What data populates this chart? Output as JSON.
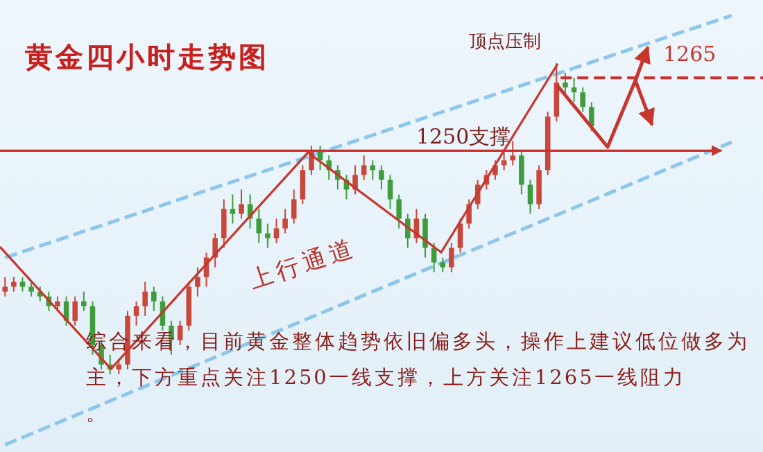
{
  "chart_data": {
    "type": "candlestick",
    "title": "黄金四小时走势图",
    "categories": [
      null,
      null,
      null,
      null,
      null,
      null,
      null,
      null,
      null,
      null,
      null,
      null,
      null,
      null,
      null,
      null,
      null,
      null,
      null,
      null,
      null,
      null,
      null,
      null,
      null,
      null,
      null,
      null,
      null,
      null,
      null,
      null,
      null,
      null,
      null,
      null,
      null,
      null,
      null,
      null,
      null,
      null,
      null,
      null,
      null,
      null,
      null,
      null,
      null,
      null,
      null,
      null,
      null,
      null,
      null,
      null,
      null,
      null,
      null,
      null,
      null,
      null,
      null,
      null,
      null,
      null,
      null,
      null,
      null,
      null,
      null,
      null,
      null,
      null,
      null,
      null,
      null,
      null,
      null,
      null,
      null,
      null,
      null,
      null
    ],
    "ohlc": [
      [
        1221,
        1224,
        1220,
        1222
      ],
      [
        1222,
        1224,
        1221,
        1223
      ],
      [
        1223,
        1224,
        1221,
        1222
      ],
      [
        1222,
        1223,
        1220,
        1221
      ],
      [
        1221,
        1222,
        1219,
        1220
      ],
      [
        1220,
        1221,
        1217,
        1218
      ],
      [
        1218,
        1220,
        1217,
        1219
      ],
      [
        1219,
        1220,
        1214,
        1215
      ],
      [
        1215,
        1220,
        1214,
        1219
      ],
      [
        1219,
        1221,
        1217,
        1218
      ],
      [
        1218,
        1219,
        1208,
        1210
      ],
      [
        1210,
        1211,
        1205,
        1206
      ],
      [
        1206,
        1208,
        1204,
        1205
      ],
      [
        1205,
        1207,
        1204,
        1206
      ],
      [
        1206,
        1217,
        1205,
        1216
      ],
      [
        1216,
        1219,
        1214,
        1218
      ],
      [
        1218,
        1223,
        1216,
        1221
      ],
      [
        1221,
        1222,
        1217,
        1219
      ],
      [
        1219,
        1220,
        1213,
        1214
      ],
      [
        1214,
        1215,
        1208,
        1211
      ],
      [
        1211,
        1215,
        1210,
        1214
      ],
      [
        1214,
        1223,
        1213,
        1222
      ],
      [
        1222,
        1226,
        1220,
        1224
      ],
      [
        1224,
        1229,
        1222,
        1228
      ],
      [
        1228,
        1233,
        1226,
        1232
      ],
      [
        1232,
        1240,
        1230,
        1238
      ],
      [
        1238,
        1241,
        1235,
        1237
      ],
      [
        1237,
        1242,
        1236,
        1239
      ],
      [
        1239,
        1241,
        1234,
        1236
      ],
      [
        1236,
        1238,
        1231,
        1233
      ],
      [
        1233,
        1235,
        1230,
        1232
      ],
      [
        1232,
        1236,
        1231,
        1234
      ],
      [
        1234,
        1238,
        1233,
        1236
      ],
      [
        1236,
        1242,
        1235,
        1240
      ],
      [
        1240,
        1247,
        1239,
        1246
      ],
      [
        1246,
        1251,
        1245,
        1250
      ],
      [
        1250,
        1251,
        1246,
        1248
      ],
      [
        1248,
        1249,
        1244,
        1246
      ],
      [
        1246,
        1247,
        1242,
        1244
      ],
      [
        1244,
        1245,
        1240,
        1242
      ],
      [
        1242,
        1247,
        1241,
        1245
      ],
      [
        1245,
        1249,
        1244,
        1247
      ],
      [
        1247,
        1248,
        1244,
        1246
      ],
      [
        1246,
        1247,
        1242,
        1244
      ],
      [
        1244,
        1245,
        1238,
        1240
      ],
      [
        1240,
        1241,
        1234,
        1236
      ],
      [
        1236,
        1237,
        1230,
        1232
      ],
      [
        1232,
        1238,
        1231,
        1236
      ],
      [
        1236,
        1237,
        1228,
        1230
      ],
      [
        1230,
        1231,
        1225,
        1227
      ],
      [
        1227,
        1228,
        1225,
        1226
      ],
      [
        1226,
        1231,
        1225,
        1230
      ],
      [
        1230,
        1236,
        1229,
        1235
      ],
      [
        1235,
        1240,
        1234,
        1239
      ],
      [
        1239,
        1244,
        1238,
        1243
      ],
      [
        1243,
        1246,
        1242,
        1245
      ],
      [
        1245,
        1248,
        1244,
        1247
      ],
      [
        1247,
        1250,
        1246,
        1248
      ],
      [
        1248,
        1252,
        1247,
        1249
      ],
      [
        1249,
        1250,
        1241,
        1243
      ],
      [
        1243,
        1244,
        1237,
        1239
      ],
      [
        1239,
        1247,
        1238,
        1246
      ],
      [
        1246,
        1258,
        1245,
        1257
      ],
      [
        1257,
        1268,
        1256,
        1264
      ],
      [
        1264,
        1266,
        1261,
        1263
      ],
      [
        1263,
        1265,
        1260,
        1262
      ],
      [
        1262,
        1263,
        1258,
        1259
      ],
      [
        1259,
        1260,
        1254,
        1255
      ],
      null,
      null,
      null,
      null,
      null,
      null,
      null,
      null,
      null,
      null,
      null,
      null,
      null,
      null,
      null,
      null
    ],
    "series": [
      {
        "type": "line",
        "values": [
          1228,
          1228.6,
          1229.2,
          1229.8,
          1230.4,
          1231,
          1231.6,
          1232.2,
          1232.8,
          1233.4,
          1234,
          1234.6,
          1235.2,
          1235.8,
          1236.4,
          1237,
          1237.6,
          1238.2,
          1238.8,
          1239.4,
          1240,
          1240.6,
          1241.2,
          1241.8,
          1242.4,
          1243,
          1243.6,
          1244.2,
          1244.8,
          1245.4,
          1246,
          1246.6,
          1247.2,
          1247.8,
          1248.4,
          1249,
          1249.6,
          1250.2,
          1250.8,
          1251.4,
          1252,
          1252.6,
          1253.2,
          1253.8,
          1254.4,
          1255,
          1255.6,
          1256.2,
          1256.8,
          1257.4,
          1258,
          1258.6,
          1259.2,
          1259.8,
          1260.4,
          1261,
          1261.6,
          1262.2,
          1262.8,
          1263.4,
          1264,
          1264.6,
          1265.2,
          1265.8,
          1266.4,
          1267,
          1267.6,
          1268.2,
          1268.8,
          1269.4,
          1270,
          1270.6,
          1271.2,
          1271.8,
          1272.4,
          1273,
          1273.6,
          1274.2,
          1274.8,
          1275.4,
          1276,
          1276.6,
          1277.2,
          1277.8
        ],
        "color": "#8cc6ea",
        "line_style": "dashed"
      },
      {
        "type": "line",
        "values": [
          1189.5,
          1190.25,
          1191,
          1191.75,
          1192.5,
          1193.25,
          1194,
          1194.75,
          1195.5,
          1196.25,
          1197,
          1197.75,
          1198.5,
          1199.25,
          1200,
          1200.75,
          1201.5,
          1202.25,
          1203,
          1203.75,
          1204.5,
          1205.25,
          1206,
          1206.75,
          1207.5,
          1208.25,
          1209,
          1209.75,
          1210.5,
          1211.25,
          1212,
          1212.75,
          1213.5,
          1214.25,
          1215,
          1215.75,
          1216.5,
          1217.25,
          1218,
          1218.75,
          1219.5,
          1220.25,
          1221,
          1221.75,
          1222.5,
          1223.25,
          1224,
          1224.75,
          1225.5,
          1226.25,
          1227,
          1227.75,
          1228.5,
          1229.25,
          1230,
          1230.75,
          1231.5,
          1232.25,
          1233,
          1233.75,
          1234.5,
          1235.25,
          1236,
          1236.75,
          1237.5,
          1238.25,
          1239,
          1239.75,
          1240.5,
          1241.25,
          1242,
          1242.75,
          1243.5,
          1244.25,
          1245,
          1245.75,
          1246.5,
          1247.25,
          1248,
          1248.75,
          1249.5,
          1250.25,
          1251,
          1251.75
        ],
        "color": "#8cc6ea",
        "line_style": "dashed"
      }
    ],
    "ylim": [
      1188,
      1281
    ],
    "tick_labels": false,
    "ref_lines": [
      {
        "axis": "y",
        "value": 1250,
        "label": "1250支撑",
        "color": "#d0302a"
      },
      {
        "axis": "y",
        "value": 1265,
        "label": "1265",
        "color": "#d0302a",
        "line_style": "dashed"
      }
    ],
    "annotations": [
      "顶点压制",
      "上行通道",
      "综合来看，目前黄金整体趋势依旧偏多头，操作上建议低位做多为主，下方重点关注1250一线支撑，上方关注1265一线阻力。"
    ]
  }
}
